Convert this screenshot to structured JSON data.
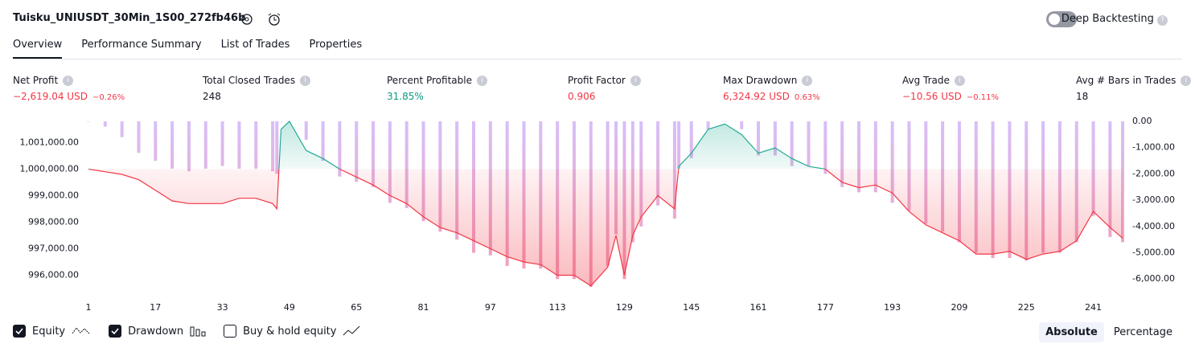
{
  "header": {
    "title": "Tuisku_UNIUSDT_30Min_1S00_272fb46b",
    "toggle_label": "Deep Backtesting"
  },
  "tabs": [
    "Overview",
    "Performance Summary",
    "List of Trades",
    "Properties"
  ],
  "metrics": [
    {
      "label": "Net Profit",
      "value": "−2,619.04 USD",
      "percent": "−0.26%",
      "color": "#f23645"
    },
    {
      "label": "Total Closed Trades",
      "value": "248",
      "color": "#131722"
    },
    {
      "label": "Percent Profitable",
      "value": "31.85%",
      "color": "#089981"
    },
    {
      "label": "Profit Factor",
      "value": "0.906",
      "color": "#f23645"
    },
    {
      "label": "Max Drawdown",
      "value": "6,324.92 USD",
      "percent": "0.63%",
      "color": "#f23645"
    },
    {
      "label": "Avg Trade",
      "value": "−10.56 USD",
      "percent": "−0.11%",
      "color": "#f23645"
    },
    {
      "label": "Avg # Bars in Trades",
      "value": "18",
      "color": "#131722"
    }
  ],
  "chart_data": {
    "type": "equity",
    "x": [
      1,
      5,
      9,
      13,
      17,
      21,
      25,
      29,
      33,
      37,
      41,
      45,
      46,
      47,
      49,
      53,
      57,
      61,
      65,
      69,
      73,
      77,
      81,
      85,
      89,
      93,
      97,
      101,
      105,
      109,
      113,
      117,
      121,
      125,
      127,
      129,
      131,
      133,
      137,
      141,
      142,
      145,
      149,
      153,
      157,
      161,
      165,
      169,
      173,
      177,
      181,
      185,
      189,
      193,
      197,
      201,
      205,
      209,
      213,
      217,
      221,
      225,
      229,
      233,
      237,
      241,
      245,
      248
    ],
    "xlim": [
      1,
      248
    ],
    "xticks": [
      1,
      17,
      33,
      49,
      65,
      81,
      97,
      113,
      129,
      145,
      161,
      177,
      193,
      209,
      225,
      241
    ],
    "ylim": [
      995530,
      1001800
    ],
    "yticks": [
      {
        "value": 1001000,
        "label": "1,001,000.00"
      },
      {
        "value": 1000000,
        "label": "1,000,000.00"
      },
      {
        "value": 999000,
        "label": "999,000.00"
      },
      {
        "value": 998000,
        "label": "998,000.00"
      },
      {
        "value": 997000,
        "label": "997,000.00"
      },
      {
        "value": 996000,
        "label": "996,000.00"
      }
    ],
    "y2lim": [
      -6330,
      0
    ],
    "y2ticks": [
      {
        "value": 0,
        "label": "0.00"
      },
      {
        "value": -1000,
        "label": "-1,000.00"
      },
      {
        "value": -2000,
        "label": "-2,000.00"
      },
      {
        "value": -3000,
        "label": "-3,000.00"
      },
      {
        "value": -4000,
        "label": "-4,000.00"
      },
      {
        "value": -5000,
        "label": "-5,000.00"
      },
      {
        "value": -6000,
        "label": "-6,000.00"
      }
    ],
    "series": [
      {
        "name": "Equity",
        "color": "#22ab94",
        "negative_color": "#f23645",
        "values": [
          1000000,
          999900,
          999800,
          999600,
          999200,
          998800,
          998700,
          998700,
          998700,
          998900,
          998900,
          998700,
          998500,
          1001500,
          1001800,
          1000700,
          1000400,
          1000000,
          999700,
          999400,
          999000,
          998700,
          998200,
          997800,
          997600,
          997300,
          997000,
          996700,
          996500,
          996400,
          996000,
          996000,
          995600,
          996300,
          997500,
          996000,
          997500,
          998200,
          999000,
          998500,
          1000100,
          1000600,
          1001500,
          1001700,
          1001300,
          1000600,
          1000800,
          1000400,
          1000100,
          1000000,
          999500,
          999300,
          999400,
          999100,
          998400,
          997900,
          997600,
          997300,
          996800,
          996800,
          996900,
          996600,
          996800,
          996900,
          997300,
          998400,
          997800,
          997400
        ]
      },
      {
        "name": "Drawdown",
        "color": "#d1b3f7",
        "axis": "y2",
        "values": [
          0,
          -200,
          -600,
          -1200,
          -1500,
          -1800,
          -1900,
          -1800,
          -1700,
          -1800,
          -1800,
          -1900,
          -2000,
          0,
          0,
          -700,
          -1500,
          -2100,
          -2300,
          -2500,
          -3100,
          -3300,
          -3800,
          -4200,
          -4500,
          -5000,
          -5100,
          -5500,
          -5600,
          -5600,
          -6000,
          -6000,
          -6300,
          -5500,
          -4300,
          -6000,
          -4600,
          -4000,
          -3200,
          -3700,
          -1800,
          -1400,
          -300,
          0,
          -300,
          -1300,
          -1300,
          -1700,
          -1700,
          -2000,
          -2500,
          -2700,
          -2700,
          -3100,
          -3400,
          -3900,
          -4200,
          -4600,
          -5000,
          -5200,
          -5200,
          -5300,
          -5000,
          -5000,
          -4600,
          -3600,
          -4400,
          -4600
        ]
      }
    ]
  },
  "legend_extra": "Buy & hold equity",
  "scale_buttons": [
    "Absolute",
    "Percentage"
  ]
}
